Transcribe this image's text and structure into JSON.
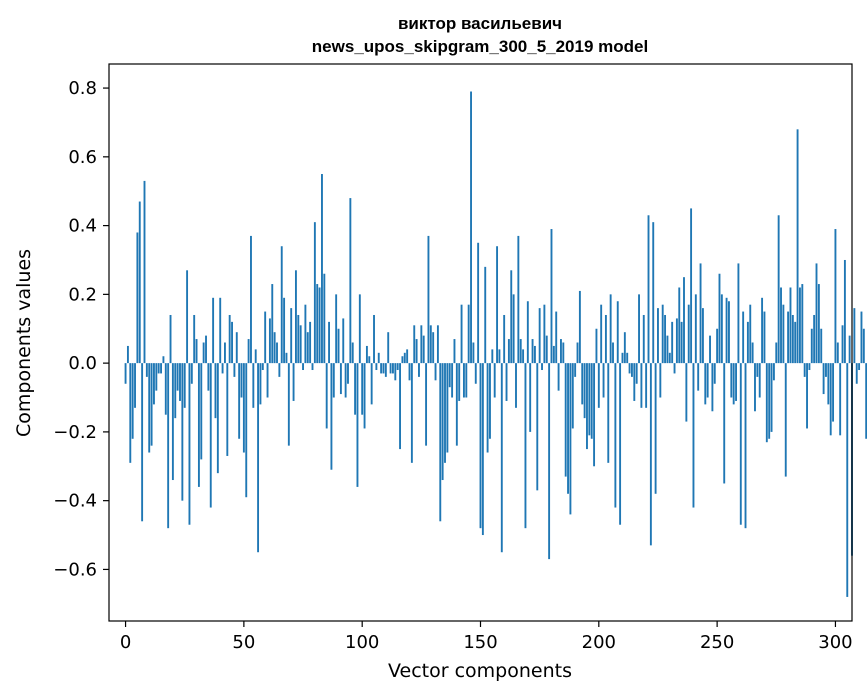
{
  "chart_data": {
    "type": "bar",
    "title": "виктор васильевич",
    "subtitle": "news_upos_skipgram_300_5_2019 model",
    "xlabel": "Vector components",
    "ylabel": "Components values",
    "xlim": [
      -7,
      307
    ],
    "ylim": [
      -0.75,
      0.87
    ],
    "x_ticks": [
      0,
      50,
      100,
      150,
      200,
      250,
      300
    ],
    "x_tick_labels": [
      "0",
      "50",
      "100",
      "150",
      "200",
      "250",
      "300"
    ],
    "y_ticks": [
      0.8,
      0.6,
      0.4,
      0.2,
      0.0,
      -0.2,
      -0.4,
      -0.6
    ],
    "y_tick_labels": [
      "0.8",
      "0.6",
      "0.4",
      "0.2",
      "0.0",
      "−0.2",
      "−0.4",
      "−0.6"
    ],
    "bar_color": "#1f77b4",
    "series": [
      {
        "name": "Components values",
        "values": [
          -0.06,
          0.05,
          -0.29,
          -0.22,
          -0.13,
          0.38,
          0.47,
          -0.46,
          0.53,
          -0.04,
          -0.26,
          -0.24,
          -0.12,
          -0.08,
          -0.03,
          -0.03,
          0.02,
          -0.15,
          -0.48,
          0.14,
          -0.34,
          -0.16,
          -0.08,
          -0.11,
          -0.4,
          -0.13,
          0.27,
          -0.47,
          -0.06,
          0.14,
          0.07,
          -0.36,
          -0.28,
          0.06,
          0.08,
          -0.08,
          -0.42,
          0.19,
          -0.16,
          -0.32,
          0.19,
          -0.03,
          0.06,
          -0.27,
          0.14,
          0.12,
          -0.04,
          0.09,
          -0.22,
          -0.1,
          -0.26,
          -0.39,
          0.07,
          0.37,
          -0.13,
          0.04,
          -0.55,
          -0.12,
          -0.02,
          0.15,
          -0.1,
          0.13,
          0.23,
          0.09,
          0.06,
          -0.04,
          0.34,
          0.19,
          0.03,
          -0.24,
          0.16,
          -0.11,
          0.27,
          0.14,
          0.11,
          -0.02,
          0.17,
          0.09,
          0.12,
          -0.02,
          0.41,
          0.23,
          0.22,
          0.55,
          0.26,
          -0.19,
          0.12,
          -0.31,
          -0.1,
          0.2,
          0.1,
          -0.09,
          0.13,
          -0.1,
          -0.06,
          0.48,
          0.06,
          -0.15,
          -0.36,
          0.2,
          -0.15,
          -0.19,
          0.05,
          0.02,
          -0.12,
          0.14,
          -0.02,
          0.03,
          -0.03,
          -0.03,
          -0.04,
          0.09,
          -0.03,
          -0.03,
          -0.05,
          -0.02,
          -0.25,
          0.02,
          0.03,
          0.04,
          -0.05,
          -0.29,
          0.11,
          0.07,
          -0.04,
          0.11,
          0.08,
          -0.24,
          0.37,
          0.11,
          0.09,
          -0.05,
          0.11,
          -0.46,
          -0.34,
          -0.29,
          -0.26,
          -0.07,
          -0.1,
          0.07,
          -0.24,
          -0.11,
          0.17,
          -0.1,
          -0.1,
          0.17,
          0.79,
          0.06,
          -0.06,
          0.35,
          -0.48,
          -0.5,
          0.28,
          -0.26,
          -0.22,
          0.04,
          -0.1,
          0.34,
          0.04,
          -0.55,
          0.14,
          -0.11,
          0.07,
          0.27,
          0.2,
          -0.13,
          0.37,
          0.07,
          0.04,
          -0.48,
          0.18,
          -0.2,
          0.07,
          0.05,
          -0.37,
          0.16,
          -0.02,
          0.17,
          0.08,
          -0.57,
          0.39,
          0.05,
          0.15,
          -0.08,
          0.07,
          0.06,
          -0.33,
          -0.38,
          -0.44,
          -0.19,
          -0.04,
          0.06,
          0.21,
          -0.12,
          -0.16,
          -0.25,
          -0.21,
          -0.22,
          -0.3,
          0.1,
          -0.13,
          0.17,
          -0.1,
          0.14,
          -0.29,
          0.2,
          0.06,
          -0.42,
          0.18,
          -0.47,
          0.03,
          0.09,
          0.03,
          -0.03,
          -0.04,
          -0.11,
          -0.06,
          0.2,
          -0.13,
          0.14,
          -0.13,
          0.43,
          -0.53,
          0.41,
          -0.38,
          0.16,
          -0.1,
          0.17,
          0.14,
          0.08,
          0.03,
          0.12,
          -0.03,
          0.13,
          0.22,
          0.12,
          0.25,
          -0.17,
          0.17,
          0.45,
          -0.42,
          0.2,
          -0.08,
          0.29,
          0.16,
          -0.12,
          -0.1,
          0.08,
          -0.14,
          -0.06,
          0.1,
          0.26,
          0.2,
          -0.35,
          0.19,
          0.18,
          -0.1,
          -0.12,
          -0.11,
          0.29,
          -0.47,
          0.15,
          -0.48,
          0.12,
          0.17,
          0.06,
          -0.14,
          -0.04,
          -0.1,
          0.19,
          0.15,
          -0.23,
          -0.22,
          -0.2,
          -0.05,
          0.06,
          0.43,
          0.22,
          0.17,
          -0.33,
          0.15,
          0.22,
          0.14,
          0.12,
          0.68,
          0.22,
          0.23,
          -0.04,
          -0.19,
          -0.02,
          0.1,
          0.14,
          0.29,
          0.23,
          0.1,
          -0.09,
          -0.04,
          -0.12,
          -0.21,
          -0.17,
          0.39,
          0.06,
          -0.21,
          0.11,
          0.3,
          -0.68,
          0.08,
          -0.56,
          0.16,
          -0.06,
          -0.02,
          0.15,
          0.1,
          -0.22
        ]
      }
    ]
  }
}
